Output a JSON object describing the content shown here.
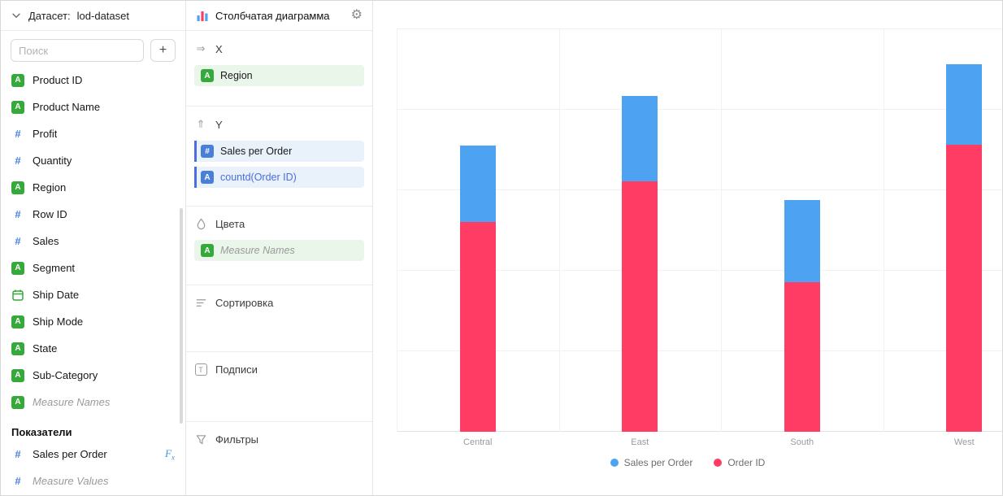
{
  "colors": {
    "dimension_green": "#35a93a",
    "measure_blue": "#4a7fd9",
    "accent_blue": "#4a6de0",
    "bar_blue": "#4da2f1",
    "bar_pink": "#ff3d64"
  },
  "sidebar": {
    "dataset_label": "Датасет:",
    "dataset_name": "lod-dataset",
    "search_placeholder": "Поиск",
    "add_label": "+",
    "fields": [
      {
        "label": "Product ID",
        "icon": "dimension-a"
      },
      {
        "label": "Product Name",
        "icon": "dimension-a"
      },
      {
        "label": "Profit",
        "icon": "measure-hash"
      },
      {
        "label": "Quantity",
        "icon": "measure-hash"
      },
      {
        "label": "Region",
        "icon": "dimension-a"
      },
      {
        "label": "Row ID",
        "icon": "measure-hash"
      },
      {
        "label": "Sales",
        "icon": "measure-hash"
      },
      {
        "label": "Segment",
        "icon": "dimension-a"
      },
      {
        "label": "Ship Date",
        "icon": "calendar"
      },
      {
        "label": "Ship Mode",
        "icon": "dimension-a"
      },
      {
        "label": "State",
        "icon": "dimension-a"
      },
      {
        "label": "Sub-Category",
        "icon": "dimension-a"
      },
      {
        "label": "Measure Names",
        "icon": "dimension-a",
        "italic": true
      }
    ],
    "measures_header": "Показатели",
    "measures": [
      {
        "label": "Sales per Order",
        "icon": "measure-hash",
        "fx": true
      },
      {
        "label": "Measure Values",
        "icon": "measure-hash",
        "italic": true
      }
    ]
  },
  "config": {
    "title": "Столбчатая диаграмма",
    "sections": {
      "x": {
        "label": "X",
        "pills": [
          {
            "label": "Region",
            "icon": "a-green-sq",
            "style": "green"
          }
        ]
      },
      "y": {
        "label": "Y",
        "pills": [
          {
            "label": "Sales per Order",
            "icon": "hash-blue-sq",
            "style": "blue"
          },
          {
            "label": "countd(Order ID)",
            "icon": "a-blue-sq",
            "style": "blue",
            "blue_text": true
          }
        ]
      },
      "colors": {
        "label": "Цвета",
        "pills": [
          {
            "label": "Measure Names",
            "icon": "a-green-sq",
            "style": "green",
            "italic": true
          }
        ]
      },
      "sort": {
        "label": "Сортировка"
      },
      "labels": {
        "label": "Подписи"
      },
      "filters": {
        "label": "Фильтры"
      }
    }
  },
  "chart_data": {
    "type": "bar",
    "stacked": true,
    "categories": [
      "Central",
      "East",
      "South",
      "West"
    ],
    "series": [
      {
        "name": "Order ID",
        "color": "#ff3d64",
        "values": [
          1175,
          1400,
          835,
          1605
        ]
      },
      {
        "name": "Sales per Order",
        "color": "#4da2f1",
        "values": [
          425,
          478,
          460,
          451
        ]
      }
    ],
    "ylim": [
      0,
      2250
    ],
    "y_gridline_step": 450,
    "grid": true,
    "legend_position": "bottom",
    "legend": [
      {
        "label": "Sales per Order",
        "color": "#4da2f1"
      },
      {
        "label": "Order ID",
        "color": "#ff3d64"
      }
    ]
  }
}
